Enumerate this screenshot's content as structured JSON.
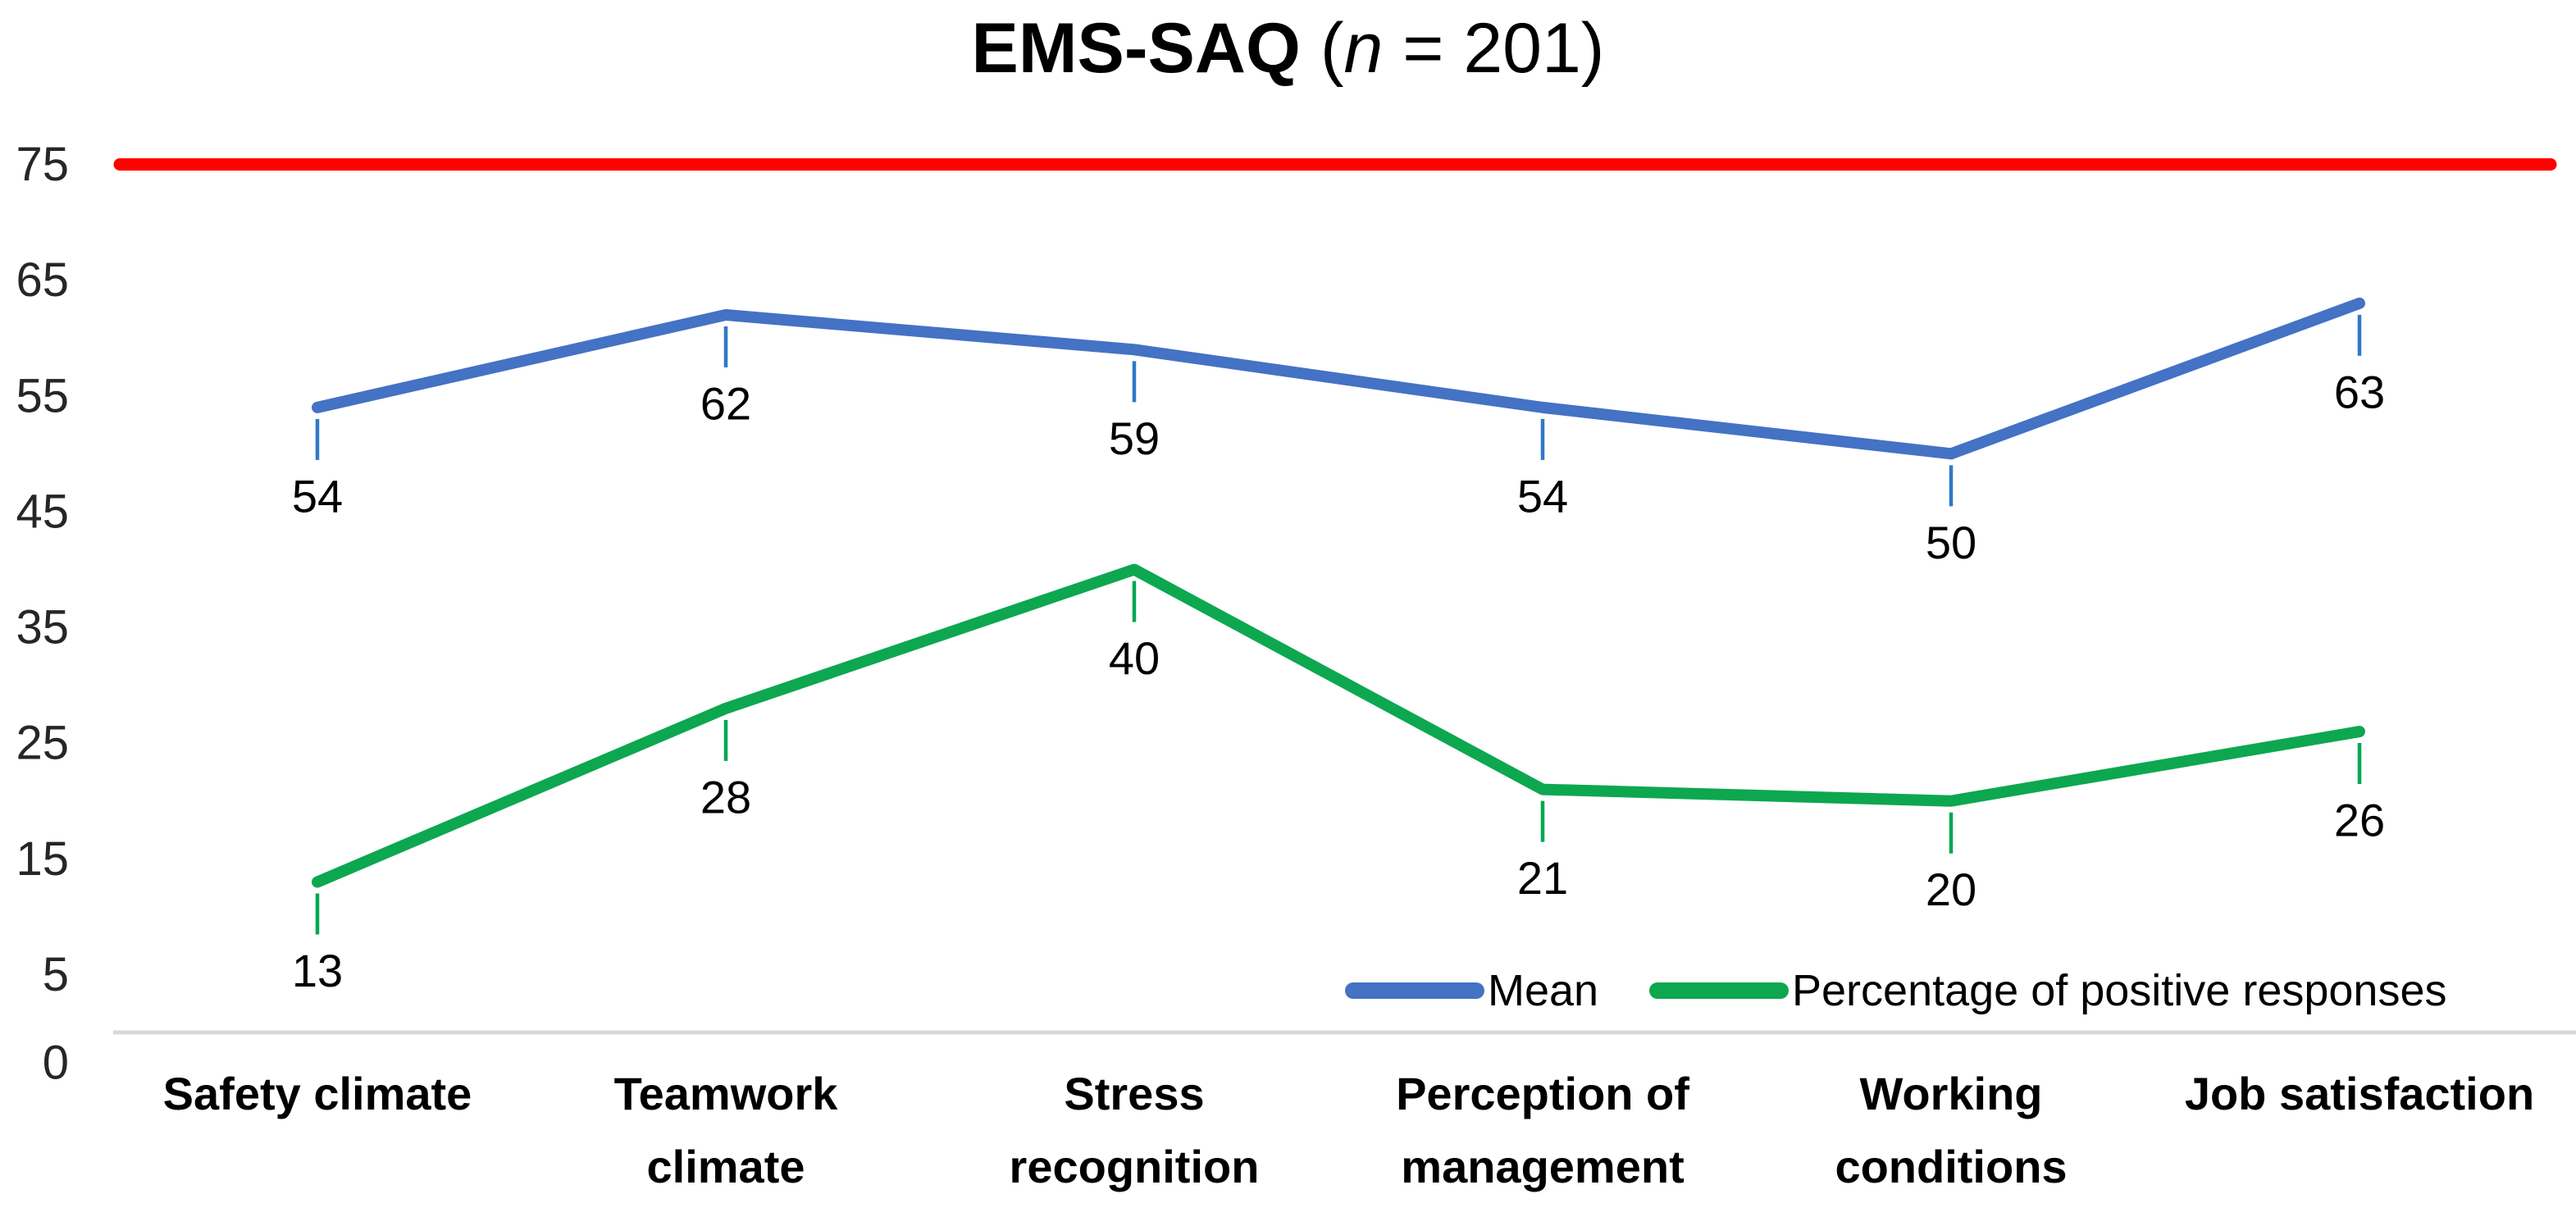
{
  "title": {
    "bold": "EMS-SAQ",
    "paren_open": " (",
    "n_italic": "n",
    "paren_rest": " = 201)"
  },
  "chart_data": {
    "type": "line",
    "title": "EMS-SAQ (n = 201)",
    "categories": [
      "Safety climate",
      "Teamwork climate",
      "Stress recognition",
      "Perception of management",
      "Working conditions",
      "Job satisfaction"
    ],
    "category_lines": [
      [
        "Safety climate"
      ],
      [
        "Teamwork",
        "climate"
      ],
      [
        "Stress",
        "recognition"
      ],
      [
        "Perception of",
        "management"
      ],
      [
        "Working",
        "conditions"
      ],
      [
        "Job satisfaction"
      ]
    ],
    "series": [
      {
        "name": "Mean",
        "values": [
          54,
          62,
          59,
          54,
          50,
          63
        ],
        "color": "#4472C4",
        "leader_color": "#2E79C9"
      },
      {
        "name": "Percentage of positive responses",
        "values": [
          13,
          28,
          40,
          21,
          20,
          26
        ],
        "color": "#0DA750",
        "leader_color": "#00A851"
      }
    ],
    "reference_line": {
      "value": 75,
      "color": "#FF0000"
    },
    "y_axis": {
      "ticks": [
        0,
        5,
        15,
        25,
        35,
        45,
        55,
        65,
        75
      ],
      "range": [
        0,
        75
      ],
      "tick_color": "#262626"
    },
    "baseline_color": "#D9D9D9",
    "data_label_color": "#000000",
    "category_label_color": "#000000",
    "legend": {
      "position": "bottom-right",
      "entries": [
        "Mean",
        "Percentage of positive responses"
      ]
    },
    "grid": false
  }
}
